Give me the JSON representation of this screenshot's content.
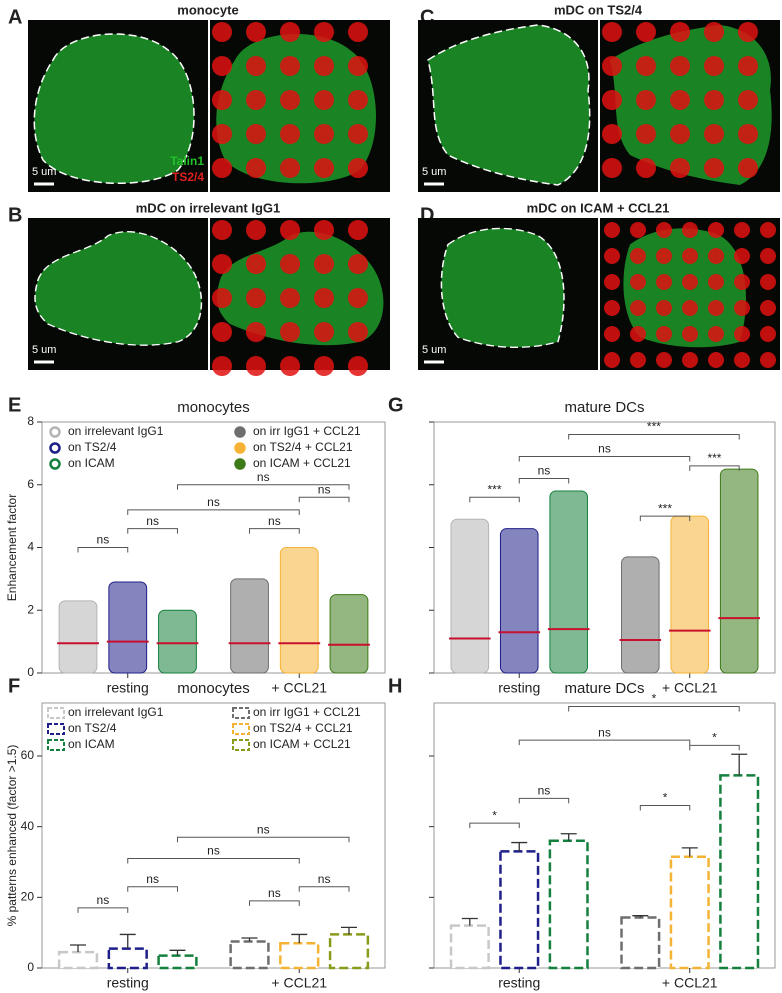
{
  "image_panels": [
    {
      "letter": "A",
      "title": "monocyte",
      "scale_bar": "5 um",
      "channels": [
        "Talin1",
        "TS2/4"
      ]
    },
    {
      "letter": "B",
      "title": "mDC on irrelevant IgG1",
      "scale_bar": "5 um"
    },
    {
      "letter": "C",
      "title": "mDC on TS2/4",
      "scale_bar": "5 um"
    },
    {
      "letter": "D",
      "title": "mDC on ICAM + CCL21",
      "scale_bar": "5 um"
    }
  ],
  "chart_data": [
    {
      "type": "strip",
      "panel": "E",
      "title": "monocytes",
      "y_label": "Enhancement factor",
      "categories": [
        "resting",
        "+ CCL21"
      ],
      "ylim": [
        0,
        8
      ],
      "yticks": [
        0,
        2,
        4,
        6,
        8
      ],
      "tick_labels": true,
      "legend": true,
      "series": [
        {
          "name": "on irrelevant IgG1",
          "color": "#b4b4b4",
          "values": [
            0.95,
            null
          ],
          "max": [
            2.3,
            null
          ]
        },
        {
          "name": "on TS2/4",
          "color": "#1f1f8a",
          "values": [
            1.0,
            null
          ],
          "max": [
            2.9,
            null
          ]
        },
        {
          "name": "on ICAM",
          "color": "#15803d",
          "values": [
            0.95,
            null
          ],
          "max": [
            2.0,
            null
          ]
        },
        {
          "name": "on irr IgG1 + CCL21",
          "color": "#6e6e6e",
          "values": [
            null,
            0.95
          ],
          "max": [
            null,
            3.0
          ]
        },
        {
          "name": "on TS2/4 + CCL21",
          "color": "#f5b335",
          "values": [
            null,
            0.95
          ],
          "max": [
            null,
            4.0
          ]
        },
        {
          "name": "on ICAM + CCL21",
          "color": "#3d7a18",
          "values": [
            null,
            0.9
          ],
          "max": [
            null,
            2.5
          ]
        }
      ],
      "comparisons": [
        {
          "between": [
            0,
            1
          ],
          "y": 4.0,
          "label": "ns"
        },
        {
          "between": [
            1,
            2
          ],
          "y": 4.6,
          "label": "ns"
        },
        {
          "between": [
            1,
            4
          ],
          "y": 5.2,
          "label": "ns"
        },
        {
          "between": [
            2,
            5
          ],
          "y": 6.0,
          "label": "ns"
        },
        {
          "between": [
            3,
            4
          ],
          "y": 4.6,
          "label": "ns"
        },
        {
          "between": [
            4,
            5
          ],
          "y": 5.6,
          "label": "ns"
        }
      ]
    },
    {
      "type": "strip",
      "panel": "G",
      "title": "mature DCs",
      "categories": [
        "resting",
        "+ CCL21"
      ],
      "ylim": [
        0,
        8
      ],
      "yticks": [
        0,
        2,
        4,
        6,
        8
      ],
      "tick_labels": false,
      "legend": false,
      "series": [
        {
          "name": "on irrelevant IgG1",
          "color": "#b4b4b4",
          "values": [
            1.1,
            null
          ],
          "max": [
            4.9,
            null
          ]
        },
        {
          "name": "on TS2/4",
          "color": "#1f1f8a",
          "values": [
            1.3,
            null
          ],
          "max": [
            4.6,
            null
          ]
        },
        {
          "name": "on ICAM",
          "color": "#15803d",
          "values": [
            1.4,
            null
          ],
          "max": [
            5.8,
            null
          ]
        },
        {
          "name": "on irr IgG1 + CCL21",
          "color": "#6e6e6e",
          "values": [
            null,
            1.05
          ],
          "max": [
            null,
            3.7
          ]
        },
        {
          "name": "on TS2/4 + CCL21",
          "color": "#f5b335",
          "values": [
            null,
            1.35
          ],
          "max": [
            null,
            5.0
          ]
        },
        {
          "name": "on ICAM + CCL21",
          "color": "#3d7a18",
          "values": [
            null,
            1.75
          ],
          "max": [
            null,
            6.5
          ]
        }
      ],
      "comparisons": [
        {
          "between": [
            0,
            1
          ],
          "y": 5.6,
          "label": "***"
        },
        {
          "between": [
            1,
            2
          ],
          "y": 6.2,
          "label": "ns"
        },
        {
          "between": [
            1,
            4
          ],
          "y": 6.9,
          "label": "ns"
        },
        {
          "between": [
            2,
            5
          ],
          "y": 7.6,
          "label": "***"
        },
        {
          "between": [
            3,
            4
          ],
          "y": 5.0,
          "label": "***"
        },
        {
          "between": [
            4,
            5
          ],
          "y": 6.6,
          "label": "***"
        }
      ]
    },
    {
      "type": "bar",
      "panel": "F",
      "title": "monocytes",
      "y_label": "% patterns enhanced (factor >1.5)",
      "categories": [
        "resting",
        "+ CCL21"
      ],
      "ylim": [
        0,
        75
      ],
      "yticks": [
        0,
        20,
        40,
        60
      ],
      "tick_labels": true,
      "legend": true,
      "series": [
        {
          "name": "on irrelevant IgG1",
          "color": "#c8c8c8",
          "values": [
            4.5,
            null
          ],
          "errors": [
            2,
            null
          ]
        },
        {
          "name": "on TS2/4",
          "color": "#1f1f8a",
          "values": [
            5.5,
            null
          ],
          "errors": [
            4,
            null
          ]
        },
        {
          "name": "on ICAM",
          "color": "#15803d",
          "values": [
            3.5,
            null
          ],
          "errors": [
            1.5,
            null
          ]
        },
        {
          "name": "on irr IgG1 + CCL21",
          "color": "#6e6e6e",
          "values": [
            null,
            7.5
          ],
          "errors": [
            null,
            1
          ]
        },
        {
          "name": "on TS2/4 + CCL21",
          "color": "#f5b335",
          "values": [
            null,
            7
          ],
          "errors": [
            null,
            2.5
          ]
        },
        {
          "name": "on ICAM + CCL21",
          "color": "#8a9a1a",
          "values": [
            null,
            9.5
          ],
          "errors": [
            null,
            2
          ]
        }
      ],
      "comparisons": [
        {
          "between": [
            0,
            1
          ],
          "y": 17,
          "label": "ns"
        },
        {
          "between": [
            1,
            2
          ],
          "y": 23,
          "label": "ns"
        },
        {
          "between": [
            1,
            4
          ],
          "y": 31,
          "label": "ns"
        },
        {
          "between": [
            2,
            5
          ],
          "y": 37,
          "label": "ns"
        },
        {
          "between": [
            3,
            4
          ],
          "y": 19,
          "label": "ns"
        },
        {
          "between": [
            4,
            5
          ],
          "y": 23,
          "label": "ns"
        }
      ]
    },
    {
      "type": "bar",
      "panel": "H",
      "title": "mature DCs",
      "categories": [
        "resting",
        "+ CCL21"
      ],
      "ylim": [
        0,
        75
      ],
      "yticks": [
        0,
        20,
        40,
        60
      ],
      "tick_labels": false,
      "legend": false,
      "series": [
        {
          "name": "on irrelevant IgG1",
          "color": "#c8c8c8",
          "values": [
            12,
            null
          ],
          "errors": [
            2,
            null
          ]
        },
        {
          "name": "on TS2/4",
          "color": "#1f1f8a",
          "values": [
            33,
            null
          ],
          "errors": [
            2.5,
            null
          ]
        },
        {
          "name": "on ICAM",
          "color": "#15803d",
          "values": [
            36,
            null
          ],
          "errors": [
            2,
            null
          ]
        },
        {
          "name": "on irr IgG1 + CCL21",
          "color": "#6e6e6e",
          "values": [
            null,
            14.3
          ],
          "errors": [
            null,
            0.5
          ]
        },
        {
          "name": "on TS2/4 + CCL21",
          "color": "#f5b335",
          "values": [
            null,
            31.5
          ],
          "errors": [
            null,
            2.5
          ]
        },
        {
          "name": "on ICAM + CCL21",
          "color": "#15803d",
          "values": [
            null,
            54.5
          ],
          "errors": [
            null,
            6
          ]
        }
      ],
      "comparisons": [
        {
          "between": [
            0,
            1
          ],
          "y": 41,
          "label": "*"
        },
        {
          "between": [
            1,
            2
          ],
          "y": 48,
          "label": "ns"
        },
        {
          "between": [
            1,
            4
          ],
          "y": 64.5,
          "label": "ns"
        },
        {
          "between": [
            2,
            5
          ],
          "y": 74,
          "label": "*"
        },
        {
          "between": [
            3,
            4
          ],
          "y": 46,
          "label": "*"
        },
        {
          "between": [
            4,
            5
          ],
          "y": 63,
          "label": "*"
        }
      ]
    }
  ]
}
